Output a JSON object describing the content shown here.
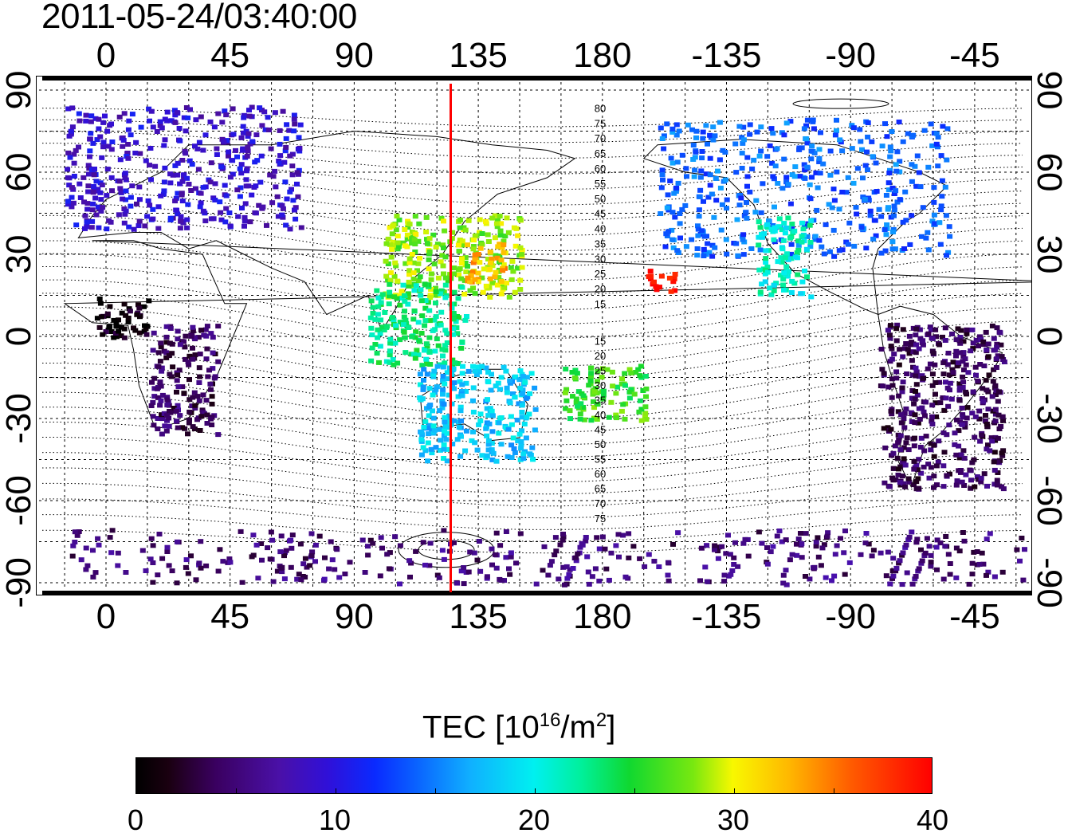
{
  "title": "2011-05-24/03:40:00",
  "x_ticks": [
    "0",
    "45",
    "90",
    "135",
    "180",
    "-135",
    "-90",
    "-45"
  ],
  "y_ticks": [
    "90",
    "60",
    "30",
    "0",
    "-30",
    "-60",
    "-90"
  ],
  "mlat_labels_north": [
    "80",
    "75",
    "70",
    "65",
    "60",
    "55",
    "50",
    "45",
    "40",
    "35",
    "30",
    "25",
    "20",
    "15"
  ],
  "mlat_labels_south": [
    "15",
    "20",
    "25",
    "30",
    "35",
    "40",
    "45",
    "50",
    "55",
    "60",
    "65",
    "70",
    "75"
  ],
  "colorbar": {
    "title": "TEC  [10",
    "title_exp": "16",
    "title_unit": "/m",
    "title_unit_exp": "2",
    "title_close": "]",
    "labels": [
      "0",
      "10",
      "20",
      "30",
      "40"
    ],
    "min": 0,
    "max": 40
  },
  "map": {
    "lon_ticks": [
      0,
      45,
      90,
      135,
      180,
      -135,
      -90,
      -45
    ],
    "lat_ticks": [
      90,
      60,
      30,
      0,
      -30,
      -60,
      -90
    ],
    "terminator_longitude": 125,
    "line_color": "#ff0000",
    "regions": [
      {
        "name": "europe-asia-north",
        "lon": [
          -15,
          70
        ],
        "lat": [
          40,
          85
        ],
        "tec": 9
      },
      {
        "name": "north-america",
        "lon": [
          -160,
          -55
        ],
        "lat": [
          30,
          80
        ],
        "tec": 14
      },
      {
        "name": "us-west-coast",
        "lon": [
          -125,
          -105
        ],
        "lat": [
          15,
          45
        ],
        "tec": 21
      },
      {
        "name": "east-asia",
        "lon": [
          100,
          150
        ],
        "lat": [
          15,
          45
        ],
        "tec": 28
      },
      {
        "name": "japan-south",
        "lon": [
          130,
          145
        ],
        "lat": [
          20,
          35
        ],
        "tec": 33
      },
      {
        "name": "southeast-asia",
        "lon": [
          95,
          130
        ],
        "lat": [
          -10,
          20
        ],
        "tec": 23
      },
      {
        "name": "hawaii-anomaly",
        "lon": [
          -165,
          -152
        ],
        "lat": [
          17,
          25
        ],
        "tec": 40
      },
      {
        "name": "australia",
        "lon": [
          112,
          155
        ],
        "lat": [
          -45,
          -10
        ],
        "tec": 18
      },
      {
        "name": "africa-west",
        "lon": [
          -5,
          15
        ],
        "lat": [
          0,
          15
        ],
        "tec": 1
      },
      {
        "name": "africa-south",
        "lon": [
          15,
          40
        ],
        "lat": [
          -35,
          5
        ],
        "tec": 4
      },
      {
        "name": "south-america",
        "lon": [
          -80,
          -35
        ],
        "lat": [
          -55,
          5
        ],
        "tec": 4
      },
      {
        "name": "antarctica",
        "lon": [
          -180,
          180
        ],
        "lat": [
          -90,
          -70
        ],
        "tec": 5
      },
      {
        "name": "south-pacific",
        "lon": [
          165,
          195
        ],
        "lat": [
          -30,
          -10
        ],
        "tec": 26
      }
    ]
  }
}
